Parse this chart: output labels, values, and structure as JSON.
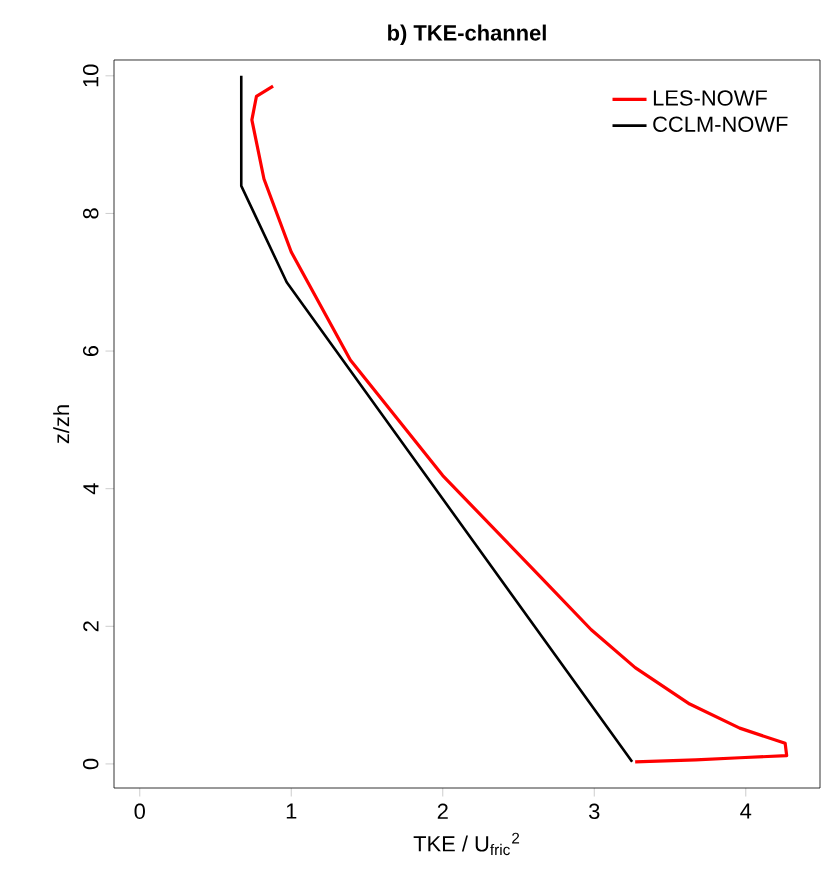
{
  "chart_data": {
    "type": "line",
    "title": "b) TKE-channel",
    "xlabel": "TKE / U$_{fric}$$^{2}$",
    "ylabel": "z/zh",
    "series": [
      {
        "name": "LES-NOWF",
        "color": "#ff0000",
        "x": [
          0.88,
          0.77,
          0.74,
          0.82,
          1.0,
          1.39,
          2.0,
          2.64,
          2.98,
          3.27,
          3.63,
          3.96,
          4.26,
          4.27,
          3.96,
          3.67,
          3.27
        ],
        "values": [
          9.85,
          9.7,
          9.36,
          8.5,
          7.44,
          5.87,
          4.19,
          2.73,
          1.95,
          1.4,
          0.87,
          0.52,
          0.3,
          0.12,
          0.09,
          0.06,
          0.03
        ]
      },
      {
        "name": "CCLM-NOWF",
        "color": "#000000",
        "x": [
          0.67,
          0.67,
          0.97,
          3.25
        ],
        "values": [
          10,
          8.4,
          7.0,
          0.03
        ]
      }
    ],
    "xlim": [
      -0.17,
      4.49
    ],
    "ylim": [
      -0.35,
      10.23
    ],
    "xticks": [
      0,
      1,
      2,
      3,
      4
    ],
    "yticks": [
      0,
      2,
      4,
      6,
      8,
      10
    ],
    "grid": false,
    "legend": "top right",
    "marker": "none",
    "line_style": "solid"
  }
}
